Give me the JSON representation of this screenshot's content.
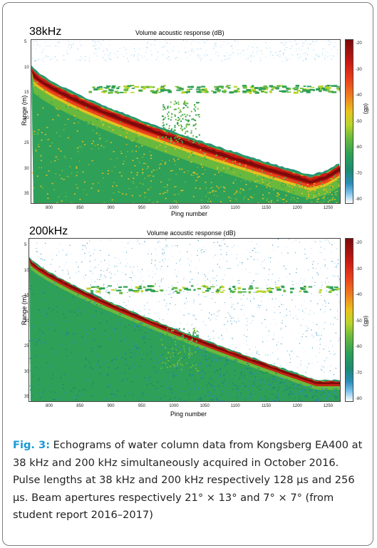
{
  "figure": {
    "panels": [
      {
        "freq_label": "38kHz",
        "title": "Volume acoustic response (dB)",
        "ylabel": "Range (m)",
        "xlabel": "Ping number",
        "cbar_label": "(dB)",
        "yticks": [
          "5",
          "10",
          "15",
          "20",
          "25",
          "30",
          "35"
        ],
        "xticks": [
          "800",
          "850",
          "900",
          "950",
          "1000",
          "1050",
          "1100",
          "1150",
          "1200",
          "1250"
        ],
        "cbar_ticks": [
          "-20",
          "-30",
          "-40",
          "-50",
          "-60",
          "-70",
          "-80"
        ]
      },
      {
        "freq_label": "200kHz",
        "title": "Volume acoustic response (dB)",
        "ylabel": "Range (m)",
        "xlabel": "Ping number",
        "cbar_label": "(dB)",
        "yticks": [
          "5",
          "10",
          "15",
          "20",
          "25",
          "30",
          "35"
        ],
        "xticks": [
          "800",
          "850",
          "900",
          "950",
          "1000",
          "1050",
          "1100",
          "1150",
          "1200",
          "1250"
        ],
        "cbar_ticks": [
          "-20",
          "-30",
          "-40",
          "-50",
          "-60",
          "-70",
          "-80"
        ]
      }
    ],
    "caption": {
      "label": "Fig. 3:",
      "text": " Echograms of water column data from Kongsberg EA400 at 38 kHz and 200 kHz simultaneously acquired in October 2016. Pulse lengths at 38 kHz and 200 kHz respectively 128 µs and 256 µs. Beam apertures respectively 21° × 13° and 7° × 7° (from student report 2016–2017)"
    }
  }
}
